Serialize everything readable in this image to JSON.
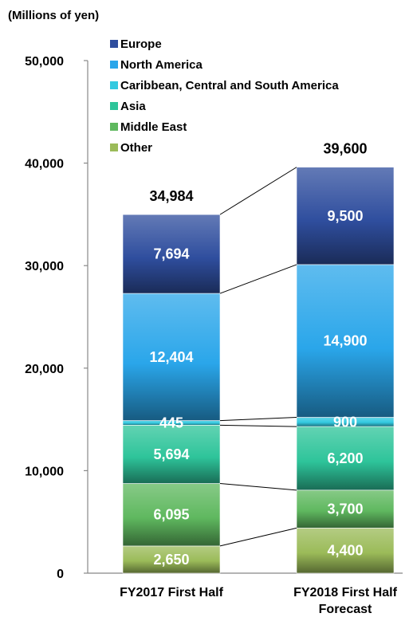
{
  "chart_data": {
    "type": "bar",
    "stacked": true,
    "unit_label": "(Millions of yen)",
    "categories": [
      "FY2017 First Half",
      "FY2018 First Half\nForecast"
    ],
    "ylim": [
      0,
      50000
    ],
    "yticks": [
      "0",
      "10,000",
      "20,000",
      "30,000",
      "40,000",
      "50,000"
    ],
    "totals": [
      "34,984",
      "39,600"
    ],
    "legend_position": "top-left",
    "series": [
      {
        "name": "Other",
        "values": [
          2650,
          4400
        ],
        "labels": [
          "2,650",
          "4,400"
        ],
        "color": "#9bbb59"
      },
      {
        "name": "Middle East",
        "values": [
          6095,
          3700
        ],
        "labels": [
          "6,095",
          "3,700"
        ],
        "color": "#5fb85f"
      },
      {
        "name": "Asia",
        "values": [
          5694,
          6200
        ],
        "labels": [
          "5,694",
          "6,200"
        ],
        "color": "#2ec49a"
      },
      {
        "name": "Caribbean, Central and South America",
        "values": [
          445,
          900
        ],
        "labels": [
          "445",
          "900"
        ],
        "color": "#33c9e0"
      },
      {
        "name": "North America",
        "values": [
          12404,
          14900
        ],
        "labels": [
          "12,404",
          "14,900"
        ],
        "color": "#2aa6ea"
      },
      {
        "name": "Europe",
        "values": [
          7694,
          9500
        ],
        "labels": [
          "7,694",
          "9,500"
        ],
        "color": "#2f4e9e"
      }
    ]
  }
}
